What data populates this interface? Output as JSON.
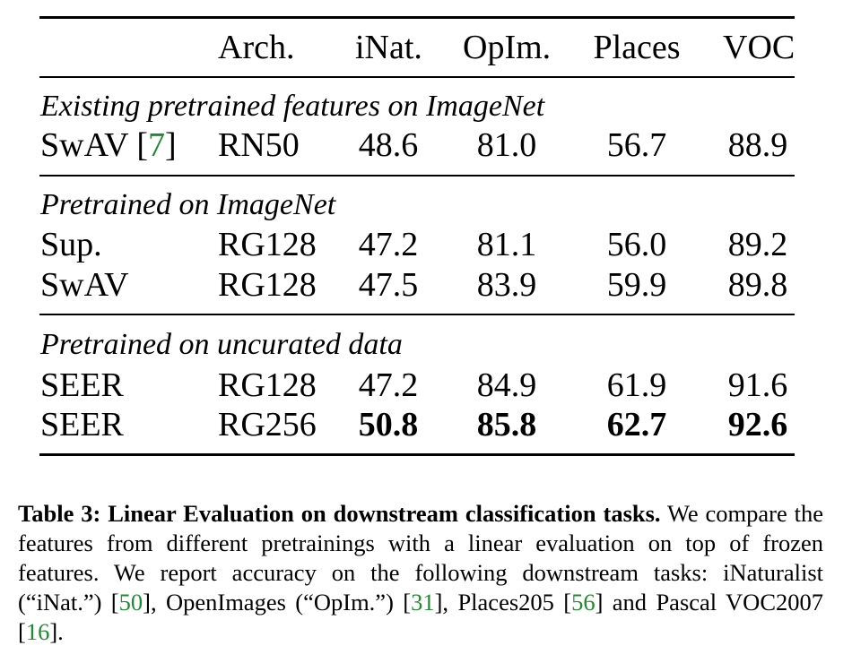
{
  "table": {
    "header": [
      "Arch.",
      "iNat.",
      "OpIm.",
      "Places",
      "VOC"
    ],
    "sections": [
      {
        "title": "Existing pretrained features on ImageNet",
        "rows": [
          {
            "method": "SwAV",
            "cite": "7",
            "arch": "RN50",
            "inat": "48.6",
            "opim": "81.0",
            "places": "56.7",
            "voc": "88.9",
            "bold": false
          }
        ]
      },
      {
        "title": "Pretrained on ImageNet",
        "rows": [
          {
            "method": "Sup.",
            "arch": "RG128",
            "inat": "47.2",
            "opim": "81.1",
            "places": "56.0",
            "voc": "89.2",
            "bold": false
          },
          {
            "method": "SwAV",
            "arch": "RG128",
            "inat": "47.5",
            "opim": "83.9",
            "places": "59.9",
            "voc": "89.8",
            "bold": false
          }
        ]
      },
      {
        "title": "Pretrained on uncurated data",
        "rows": [
          {
            "method": "SEER",
            "arch": "RG128",
            "inat": "47.2",
            "opim": "84.9",
            "places": "61.9",
            "voc": "91.6",
            "bold": false
          },
          {
            "method": "SEER",
            "arch": "RG256",
            "inat": "50.8",
            "opim": "85.8",
            "places": "62.7",
            "voc": "92.6",
            "bold": true
          }
        ]
      }
    ]
  },
  "caption": {
    "title": "Table 3: Linear Evaluation on downstream classification tasks.",
    "t1": " We compare the features from different pretrainings with a linear evaluation on top of frozen features.  We report accuracy on the following downstream tasks: iNaturalist (“iNat.”) [",
    "c1": "50",
    "t2": "], OpenImages (“OpIm.”) [",
    "c2": "31",
    "t3": "], Places205 [",
    "c3": "56",
    "t4": "] and Pascal VOC2007 [",
    "c4": "16",
    "t5": "]."
  },
  "colors": {
    "citation": "#1e8b2f",
    "text": "#000000"
  }
}
